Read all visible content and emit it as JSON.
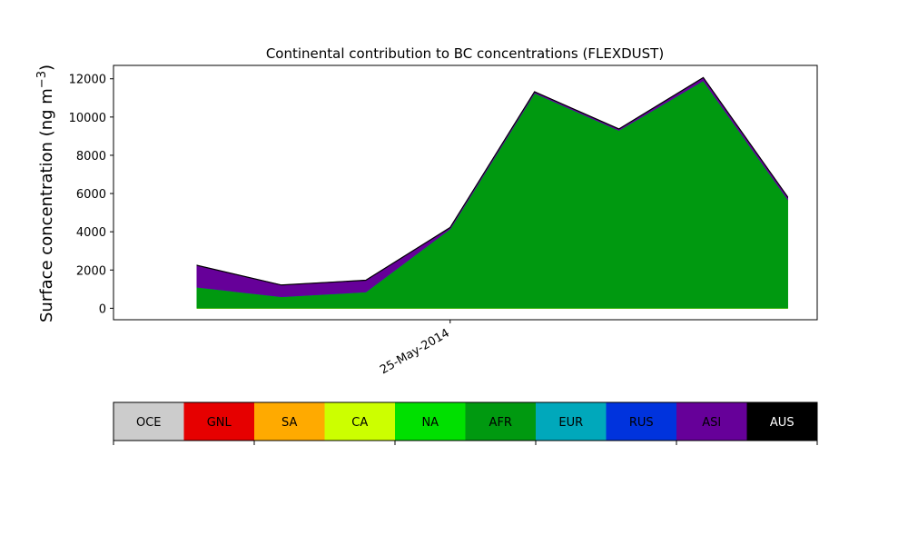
{
  "chart_data": {
    "type": "area",
    "stacked": true,
    "title": "Continental contribution to BC concentrations (FLEXDUST)",
    "ylabel_main": "Surface concentration (ng m",
    "ylabel_sup": "−3",
    "ylabel_close": ")",
    "xlabel": "",
    "ylim": [
      -600,
      12700
    ],
    "yticks": [
      0,
      2000,
      4000,
      6000,
      8000,
      10000,
      12000
    ],
    "x": [
      -3,
      -2,
      -1,
      0,
      1,
      2,
      3,
      4
    ],
    "xtick_values": [
      0
    ],
    "xtick_labels": [
      "25-May-2014"
    ],
    "grid": false,
    "series": [
      {
        "name": "OCE",
        "color": "#cccccc",
        "values": [
          0,
          0,
          0,
          0,
          0,
          0,
          0,
          0
        ]
      },
      {
        "name": "GNL",
        "color": "#e60000",
        "values": [
          0,
          0,
          0,
          0,
          0,
          0,
          0,
          0
        ]
      },
      {
        "name": "SA",
        "color": "#ffaa00",
        "values": [
          0,
          0,
          0,
          0,
          0,
          0,
          0,
          0
        ]
      },
      {
        "name": "CA",
        "color": "#ccff00",
        "values": [
          10,
          10,
          10,
          10,
          10,
          10,
          10,
          10
        ]
      },
      {
        "name": "NA",
        "color": "#00e000",
        "values": [
          0,
          0,
          0,
          0,
          0,
          0,
          0,
          0
        ]
      },
      {
        "name": "AFR",
        "color": "#009910",
        "values": [
          1100,
          600,
          850,
          4150,
          11250,
          9300,
          11900,
          5700
        ]
      },
      {
        "name": "EUR",
        "color": "#00a8bb",
        "values": [
          0,
          0,
          0,
          0,
          0,
          0,
          0,
          0
        ]
      },
      {
        "name": "RUS",
        "color": "#0033dd",
        "values": [
          0,
          0,
          0,
          0,
          0,
          0,
          0,
          0
        ]
      },
      {
        "name": "ASI",
        "color": "#660099",
        "values": [
          1130,
          600,
          600,
          60,
          60,
          60,
          150,
          110
        ]
      },
      {
        "name": "AUS",
        "color": "#000000",
        "values": [
          10,
          10,
          10,
          10,
          10,
          10,
          10,
          10
        ]
      }
    ],
    "colorbar": {
      "labels": [
        "OCE",
        "GNL",
        "SA",
        "CA",
        "NA",
        "AFR",
        "EUR",
        "RUS",
        "ASI",
        "AUS"
      ],
      "colors": [
        "#cccccc",
        "#e60000",
        "#ffaa00",
        "#ccff00",
        "#00e000",
        "#009910",
        "#00a8bb",
        "#0033dd",
        "#660099",
        "#000000"
      ],
      "text_colors": [
        "#000000",
        "#000000",
        "#000000",
        "#000000",
        "#000000",
        "#000000",
        "#000000",
        "#000000",
        "#000000",
        "#ffffff"
      ]
    }
  }
}
